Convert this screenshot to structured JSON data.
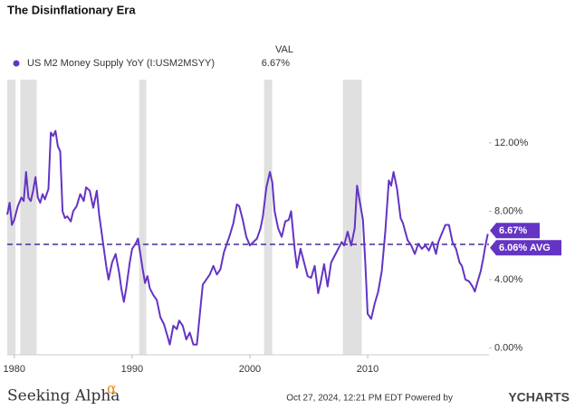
{
  "chart_data": {
    "type": "line",
    "title": "The Disinflationary Era",
    "header": "VAL",
    "series": [
      {
        "name": "US M2 Money Supply YoY (I:USM2MSYY)",
        "color": "#6434c4",
        "x": [
          1979.4,
          1979.6,
          1979.8,
          1980.0,
          1980.3,
          1980.6,
          1980.8,
          1981.0,
          1981.2,
          1981.4,
          1981.6,
          1981.8,
          1982.0,
          1982.2,
          1982.4,
          1982.6,
          1982.9,
          1983.1,
          1983.3,
          1983.5,
          1983.7,
          1983.9,
          1984.1,
          1984.3,
          1984.5,
          1984.8,
          1985.0,
          1985.3,
          1985.6,
          1985.9,
          1986.1,
          1986.4,
          1986.7,
          1987.0,
          1987.2,
          1987.5,
          1987.8,
          1988.0,
          1988.3,
          1988.6,
          1988.9,
          1989.1,
          1989.3,
          1989.5,
          1989.8,
          1990.0,
          1990.3,
          1990.5,
          1990.7,
          1990.9,
          1991.1,
          1991.3,
          1991.5,
          1991.8,
          1992.1,
          1992.4,
          1992.7,
          1993.0,
          1993.2,
          1993.5,
          1993.8,
          1994.0,
          1994.3,
          1994.6,
          1994.9,
          1995.2,
          1995.5,
          1995.8,
          1996.0,
          1996.3,
          1996.6,
          1996.9,
          1997.2,
          1997.5,
          1997.8,
          1998.0,
          1998.3,
          1998.6,
          1998.9,
          1999.1,
          1999.4,
          1999.7,
          2000.0,
          2000.3,
          2000.6,
          2000.9,
          2001.1,
          2001.4,
          2001.7,
          2001.9,
          2002.1,
          2002.4,
          2002.7,
          2003.0,
          2003.3,
          2003.5,
          2003.8,
          2004.0,
          2004.3,
          2004.6,
          2004.9,
          2005.2,
          2005.5,
          2005.8,
          2006.0,
          2006.3,
          2006.6,
          2006.9,
          2007.2,
          2007.5,
          2007.8,
          2008.0,
          2008.3,
          2008.6,
          2008.9,
          2009.1,
          2009.3,
          2009.6,
          2009.8,
          2010.0,
          2010.3,
          2010.6,
          2010.9,
          2011.2,
          2011.5,
          2011.8,
          2012.0,
          2012.2,
          2012.5,
          2012.8,
          2013.0,
          2013.4,
          2013.7,
          2014.0,
          2014.3,
          2014.6,
          2014.9,
          2015.2,
          2015.5,
          2015.8,
          2016.0,
          2016.3,
          2016.6,
          2016.9,
          2017.2,
          2017.5,
          2017.8,
          2018.0,
          2018.3,
          2018.6,
          2018.9,
          2019.1,
          2019.3,
          2019.6,
          2019.8,
          2020.0,
          2020.2
        ],
        "values": [
          7.8,
          8.5,
          7.2,
          7.5,
          8.3,
          8.8,
          8.6,
          10.3,
          8.8,
          8.6,
          9.2,
          10.0,
          8.8,
          8.5,
          9.0,
          8.7,
          9.3,
          12.6,
          12.4,
          12.7,
          11.8,
          11.5,
          8.0,
          7.6,
          7.7,
          7.4,
          8.0,
          8.3,
          9.0,
          8.6,
          9.4,
          9.2,
          8.2,
          9.2,
          7.8,
          6.3,
          4.8,
          4.0,
          5.0,
          5.5,
          4.4,
          3.4,
          2.7,
          3.5,
          5.0,
          5.8,
          6.1,
          6.4,
          5.5,
          4.6,
          3.8,
          4.2,
          3.5,
          3.1,
          2.8,
          1.8,
          1.4,
          0.7,
          0.2,
          1.3,
          1.1,
          1.6,
          1.3,
          0.5,
          0.9,
          0.2,
          0.2,
          2.3,
          3.7,
          4.0,
          4.3,
          4.8,
          4.3,
          4.6,
          5.6,
          6.0,
          6.6,
          7.3,
          8.4,
          8.3,
          7.5,
          6.5,
          6.0,
          6.2,
          6.4,
          7.0,
          7.7,
          9.4,
          10.3,
          9.7,
          8.0,
          7.0,
          6.5,
          7.4,
          7.5,
          8.0,
          5.8,
          4.7,
          5.8,
          5.0,
          4.2,
          4.1,
          4.8,
          3.2,
          3.8,
          4.9,
          3.6,
          5.0,
          5.4,
          5.8,
          6.2,
          6.0,
          6.8,
          6.0,
          7.0,
          9.5,
          8.7,
          7.5,
          5.0,
          2.0,
          1.7,
          2.6,
          3.3,
          4.5,
          6.8,
          9.8,
          9.5,
          10.3,
          9.3,
          7.6,
          7.3,
          6.3,
          6.0,
          5.5,
          6.1,
          5.8,
          6.0,
          5.7,
          6.2,
          5.5,
          6.2,
          6.7,
          7.2,
          7.2,
          6.2,
          5.8,
          5.0,
          4.8,
          4.0,
          3.9,
          3.6,
          3.3,
          3.8,
          4.5,
          5.2,
          6.0,
          6.67
        ]
      }
    ],
    "last_value": {
      "value": 6.67,
      "label": "6.67%"
    },
    "reference_lines": [
      {
        "value": 6.06,
        "label": "6.06% AVG"
      }
    ],
    "shaded_ranges": [
      [
        1979.4,
        1980.1
      ],
      [
        1980.5,
        1981.9
      ],
      [
        1990.6,
        1991.2
      ],
      [
        2001.2,
        2001.9
      ],
      [
        2007.9,
        2009.5
      ]
    ],
    "xlim": [
      1979.4,
      2020.3
    ],
    "xticks": [
      1980,
      1990,
      2000,
      2010
    ],
    "ylim": [
      -0.4,
      15.7
    ],
    "yticks": [
      {
        "value": 0,
        "label": "0.00%"
      },
      {
        "value": 4,
        "label": "4.00%"
      },
      {
        "value": 8,
        "label": "8.00%"
      },
      {
        "value": 12,
        "label": "12.00%"
      }
    ],
    "grid": false,
    "footer": {
      "brand": "Seeking Alpha",
      "brand_mark": "α",
      "timestamp": "Oct 27, 2024, 12:21 PM EDT Powered by",
      "provider": "YCHARTS"
    }
  }
}
